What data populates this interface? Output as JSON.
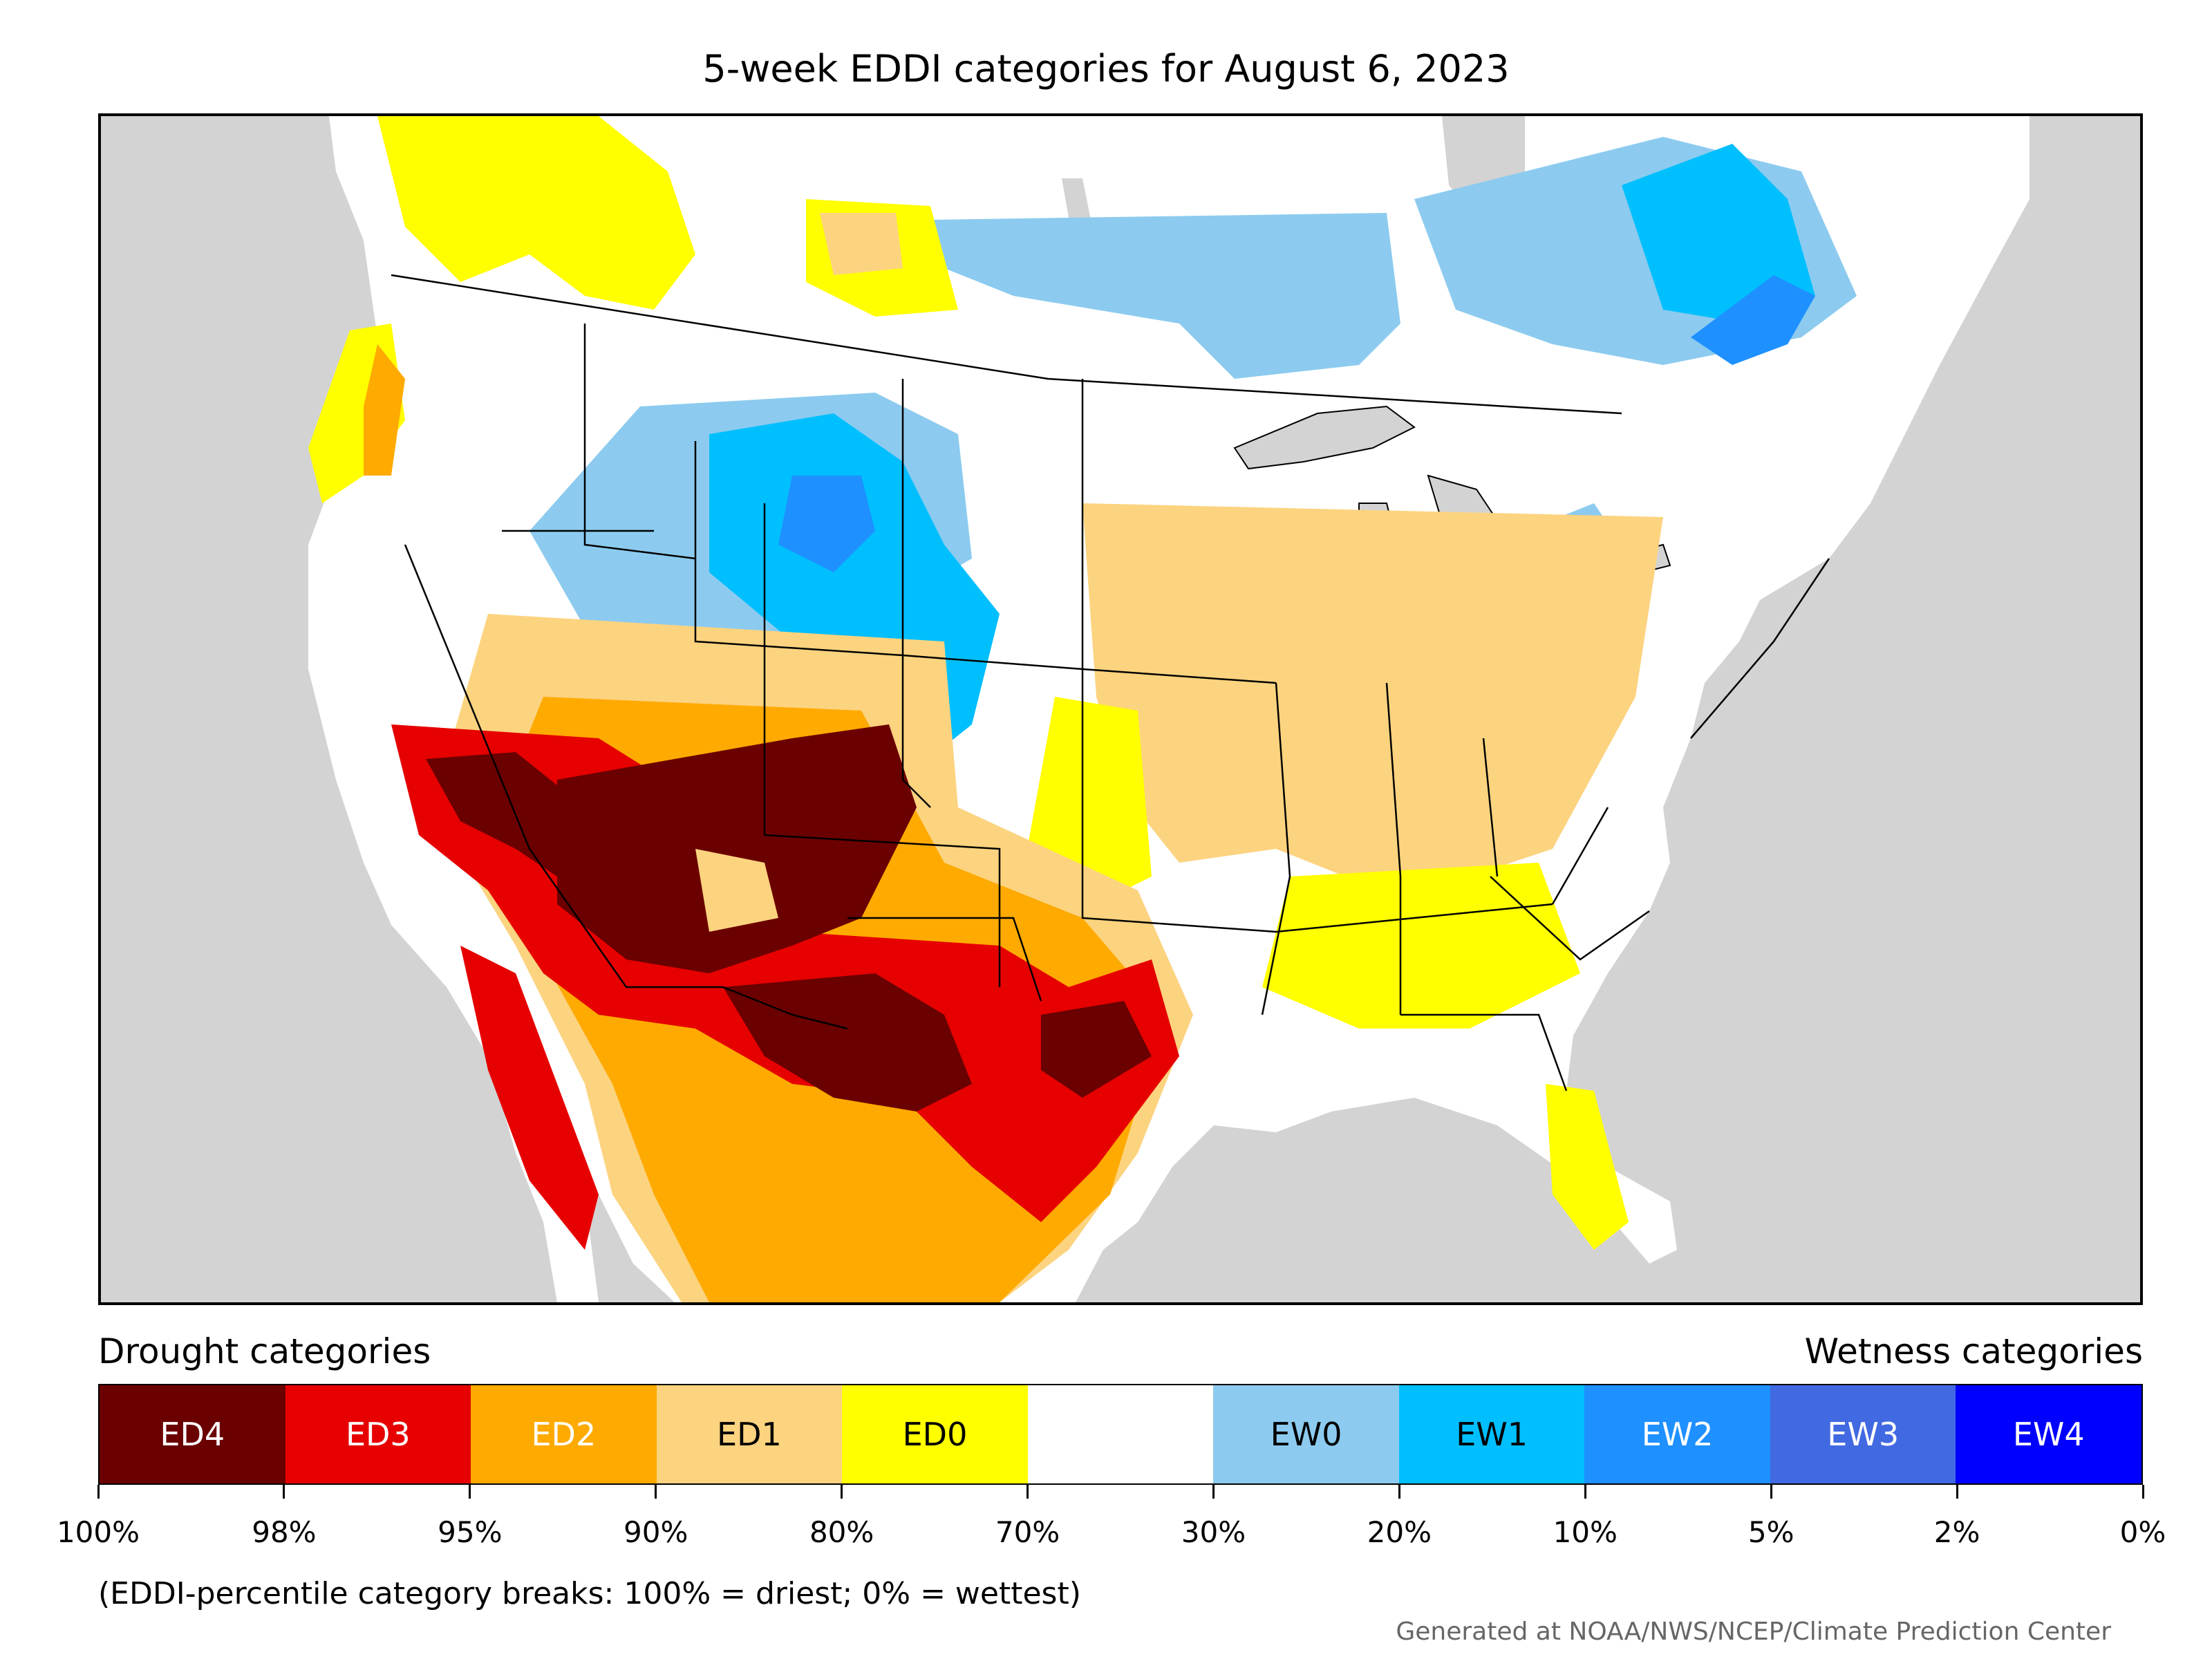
{
  "title": "5-week EDDI categories for August 6, 2023",
  "legend": {
    "left_label": "Drought categories",
    "right_label": "Wetness categories",
    "categories": [
      {
        "label": "ED4",
        "color": "#6b0000",
        "text_color": "#ffffff"
      },
      {
        "label": "ED3",
        "color": "#e60000",
        "text_color": "#ffffff"
      },
      {
        "label": "ED2",
        "color": "#ffaa00",
        "text_color": "#ffffff"
      },
      {
        "label": "ED1",
        "color": "#fcd37f",
        "text_color": "#000000"
      },
      {
        "label": "ED0",
        "color": "#ffff00",
        "text_color": "#000000"
      },
      {
        "label": "",
        "color": "#ffffff",
        "text_color": "#000000"
      },
      {
        "label": "EW0",
        "color": "#8ccbef",
        "text_color": "#000000"
      },
      {
        "label": "EW1",
        "color": "#00bfff",
        "text_color": "#000000"
      },
      {
        "label": "EW2",
        "color": "#1e90ff",
        "text_color": "#ffffff"
      },
      {
        "label": "EW3",
        "color": "#4169e1",
        "text_color": "#ffffff"
      },
      {
        "label": "EW4",
        "color": "#0000ff",
        "text_color": "#ffffff"
      }
    ],
    "ticks": [
      "100%",
      "98%",
      "95%",
      "90%",
      "80%",
      "70%",
      "30%",
      "20%",
      "10%",
      "5%",
      "2%",
      "0%"
    ]
  },
  "footnote": "(EDDI-percentile category breaks: 100% = driest; 0% = wettest)",
  "credit": "Generated at NOAA/NWS/NCEP/Climate Prediction Center",
  "map": {
    "background_color": "#d3d3d3",
    "land_color": "#ffffff",
    "border_color": "#000000"
  }
}
